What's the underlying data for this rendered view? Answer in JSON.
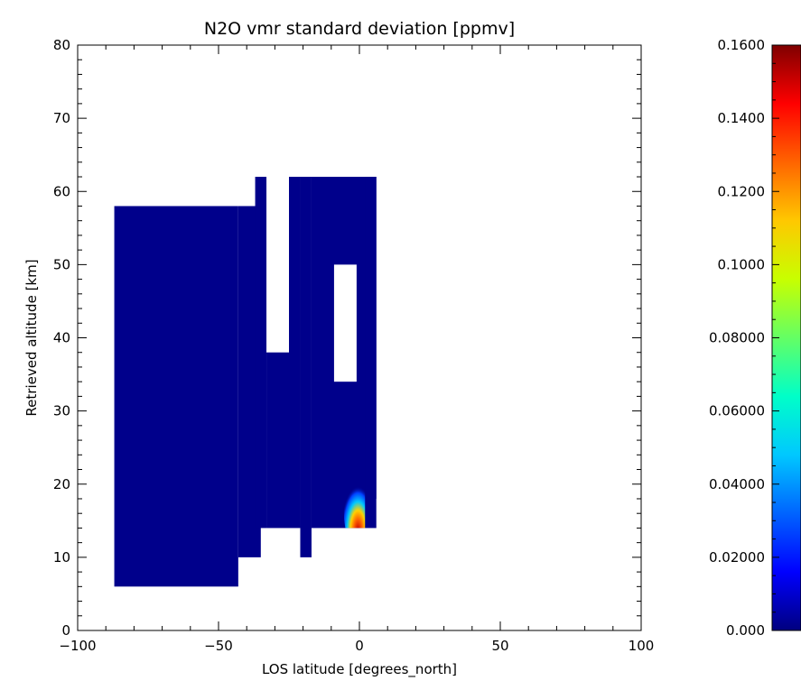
{
  "chart_data": [
    {
      "type": "heatmap",
      "title": "N2O vmr standard deviation [ppmv]",
      "xlabel": "LOS latitude [degrees_north]",
      "ylabel": "Retrieved altitude [km]",
      "xlim": [
        -100,
        100
      ],
      "ylim": [
        0,
        80
      ],
      "x_ticks": [
        -100,
        -50,
        0,
        50,
        100
      ],
      "x_tick_labels": [
        "−100",
        "−50",
        "0",
        "50",
        "100"
      ],
      "y_ticks": [
        0,
        10,
        20,
        30,
        40,
        50,
        60,
        70,
        80
      ],
      "y_tick_labels": [
        "0",
        "10",
        "20",
        "30",
        "40",
        "50",
        "60",
        "70",
        "80"
      ],
      "grid": false,
      "background_color": "#00008b",
      "coverage_regions": [
        {
          "x": [
            -87,
            -43
          ],
          "y": [
            6,
            58
          ]
        },
        {
          "x": [
            -43,
            -35
          ],
          "y": [
            10,
            58
          ]
        },
        {
          "x": [
            -37,
            -33
          ],
          "y": [
            14,
            62
          ]
        },
        {
          "x": [
            -33,
            -25
          ],
          "y": [
            14,
            38
          ]
        },
        {
          "x": [
            -25,
            -21
          ],
          "y": [
            14,
            62
          ]
        },
        {
          "x": [
            -21,
            -17
          ],
          "y": [
            10,
            62
          ]
        },
        {
          "x": [
            -17,
            6
          ],
          "y": [
            14,
            62
          ]
        },
        {
          "x": [
            2,
            6
          ],
          "y": [
            18,
            62
          ]
        }
      ],
      "gap_regions": [
        {
          "x": [
            -9,
            -1
          ],
          "y": [
            34,
            50
          ]
        }
      ],
      "hotspots": [
        {
          "x": 0,
          "y": 15,
          "value": 0.13,
          "color": "#c80000"
        },
        {
          "x": -1,
          "y": 17,
          "value": 0.07,
          "color": "#e6d200"
        },
        {
          "x": -3,
          "y": 19,
          "value": 0.035,
          "color": "#00a0ff"
        }
      ]
    },
    {
      "type": "colorbar",
      "range": [
        0.0,
        0.16
      ],
      "ticks": [
        0.0,
        0.02,
        0.04,
        0.06,
        0.08,
        0.1,
        0.12,
        0.14,
        0.16
      ],
      "tick_labels": [
        "0.000",
        "0.02000",
        "0.04000",
        "0.06000",
        "0.08000",
        "0.1000",
        "0.1200",
        "0.1400",
        "0.1600"
      ],
      "colormap": "rainbow",
      "colormap_stops": [
        "#00007f",
        "#0000ff",
        "#0064ff",
        "#00c8ff",
        "#00ffc8",
        "#64ff64",
        "#c8ff00",
        "#ffc800",
        "#ff6400",
        "#ff0000",
        "#7f0000"
      ]
    }
  ]
}
